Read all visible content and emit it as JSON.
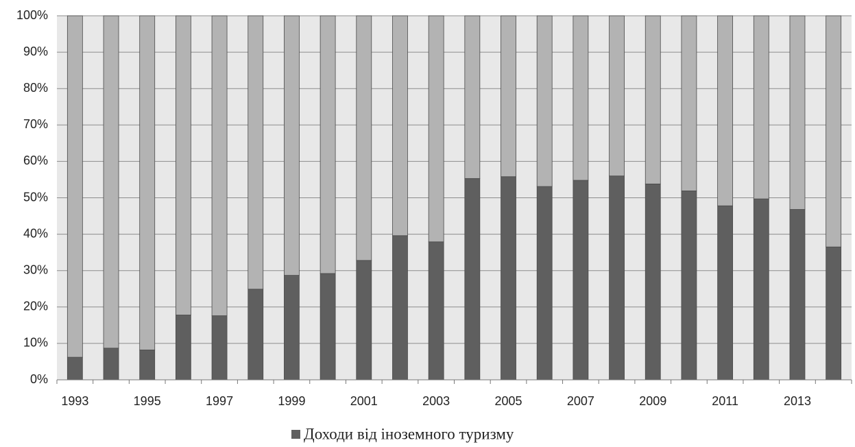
{
  "chart_data": {
    "type": "stacked_bar",
    "categories": [
      "1993",
      null,
      "1995",
      null,
      "1997",
      null,
      "1999",
      null,
      "2001",
      null,
      "2003",
      null,
      "2005",
      null,
      "2007",
      null,
      "2009",
      null,
      "2011",
      null,
      "2013",
      null
    ],
    "series": [
      {
        "name": "Доходи від іноземного туризму",
        "color": "#5f5f5f",
        "values": [
          6.2,
          8.7,
          8.2,
          17.8,
          17.6,
          24.9,
          28.7,
          29.2,
          32.8,
          39.6,
          37.9,
          55.3,
          55.8,
          53.1,
          54.8,
          56.0,
          53.8,
          51.9,
          47.8,
          49.7,
          46.8,
          36.5
        ]
      },
      {
        "color": "#b3b3b3",
        "values": [
          93.8,
          91.3,
          91.8,
          82.2,
          82.4,
          75.1,
          71.3,
          70.8,
          67.2,
          60.4,
          62.1,
          44.7,
          44.2,
          46.9,
          45.2,
          44.0,
          46.2,
          48.1,
          52.2,
          50.3,
          53.2,
          63.5
        ]
      }
    ],
    "ylim": [
      0,
      100
    ],
    "yticks": [
      {
        "value": 0,
        "label": "0%"
      },
      {
        "value": 10,
        "label": "10%"
      },
      {
        "value": 20,
        "label": "20%"
      },
      {
        "value": 30,
        "label": "30%"
      },
      {
        "value": 40,
        "label": "40%"
      },
      {
        "value": 50,
        "label": "50%"
      },
      {
        "value": 60,
        "label": "60%"
      },
      {
        "value": 70,
        "label": "70%"
      },
      {
        "value": 80,
        "label": "80%"
      },
      {
        "value": 90,
        "label": "90%"
      },
      {
        "value": 100,
        "label": "100%"
      }
    ],
    "grid": true
  }
}
